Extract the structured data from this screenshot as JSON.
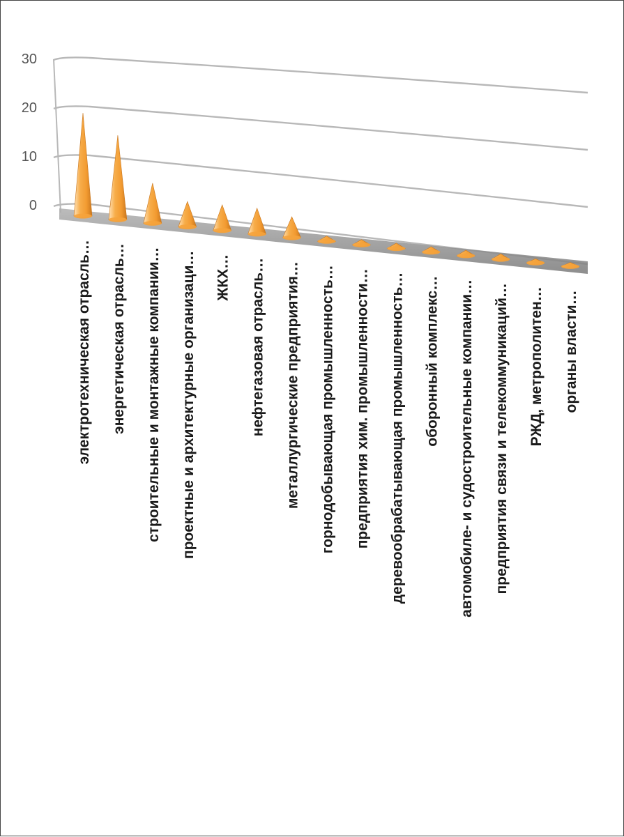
{
  "chart_data": {
    "type": "bar",
    "style": "3d-cone",
    "title": "",
    "xlabel": "",
    "ylabel": "",
    "ylim": [
      0,
      30
    ],
    "yticks": [
      0,
      10,
      20,
      30
    ],
    "grid": true,
    "colors": {
      "bar_light": "#ffd39a",
      "bar_mid": "#f5a33c",
      "bar_dark": "#c9771f",
      "grid": "#b8b8b8",
      "floor": "#8c8c8c"
    },
    "categories": [
      "электротехническая отрасль…",
      "энергетическая отрасль…",
      "строительные и монтажные компании…",
      "проектные и архитектурные организаци…",
      "ЖКХ…",
      "нефтегазовая отрасль…",
      "металлургические предприятия…",
      "горнодобывающая промышленность…",
      "предприятия хим. промышленности…",
      "деревообрабатывающая промышленность…",
      "оборонный комплекс…",
      "автомобиле- и судостроительные компании…",
      "предприятия связи и телекоммуникаций…",
      "РЖД, метрополитен…",
      "органы власти…"
    ],
    "values": [
      21,
      17,
      8,
      5,
      5,
      5,
      4,
      1,
      1,
      1,
      1,
      1,
      1,
      0.5,
      0.5
    ]
  }
}
